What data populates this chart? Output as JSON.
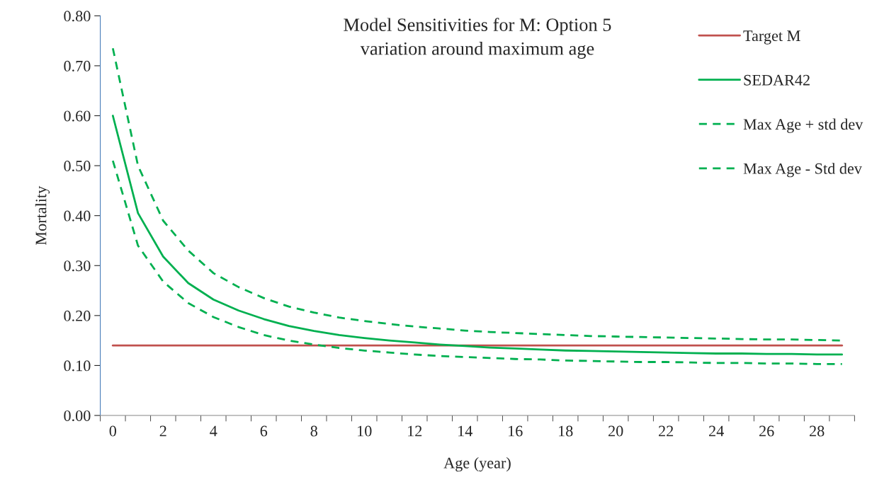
{
  "chart_data": {
    "type": "line",
    "title": "Model Sensitivities for M: Option 5",
    "subtitle": "variation around maximum age",
    "xlabel": "Age (year)",
    "ylabel": "Mortality",
    "categories": [
      "0",
      null,
      "2",
      null,
      "4",
      null,
      "6",
      null,
      "8",
      null,
      "10",
      null,
      "12",
      null,
      "14",
      null,
      "16",
      null,
      "18",
      null,
      "20",
      null,
      "22",
      null,
      "24",
      null,
      "26",
      null,
      "28",
      null
    ],
    "ylim": [
      0,
      0.8
    ],
    "yticks": [
      {
        "value": 0,
        "label": "0.00"
      },
      {
        "value": 0.1,
        "label": "0.10"
      },
      {
        "value": 0.2,
        "label": "0.20"
      },
      {
        "value": 0.3,
        "label": "0.30"
      },
      {
        "value": 0.4,
        "label": "0.40"
      },
      {
        "value": 0.5,
        "label": "0.50"
      },
      {
        "value": 0.6,
        "label": "0.60"
      },
      {
        "value": 0.7,
        "label": "0.70"
      },
      {
        "value": 0.8,
        "label": "0.80"
      }
    ],
    "grid": false,
    "legend": "top right",
    "marker": "none",
    "series": [
      {
        "name": "Target M",
        "color": "#c0504d",
        "line_style": "solid",
        "values": [
          0.14,
          0.14,
          0.14,
          0.14,
          0.14,
          0.14,
          0.14,
          0.14,
          0.14,
          0.14,
          0.14,
          0.14,
          0.14,
          0.14,
          0.14,
          0.14,
          0.14,
          0.14,
          0.14,
          0.14,
          0.14,
          0.14,
          0.14,
          0.14,
          0.14,
          0.14,
          0.14,
          0.14,
          0.14,
          0.14
        ]
      },
      {
        "name": "SEDAR42",
        "color": "#00b050",
        "line_style": "solid",
        "values": [
          0.6,
          0.405,
          0.318,
          0.265,
          0.232,
          0.21,
          0.193,
          0.179,
          0.169,
          0.161,
          0.155,
          0.15,
          0.146,
          0.142,
          0.139,
          0.136,
          0.134,
          0.132,
          0.13,
          0.129,
          0.128,
          0.127,
          0.126,
          0.125,
          0.124,
          0.124,
          0.123,
          0.123,
          0.122,
          0.122
        ]
      },
      {
        "name": "Max Age + std dev",
        "color": "#00b050",
        "line_style": "dashed",
        "values": [
          0.735,
          0.5,
          0.39,
          0.33,
          0.285,
          0.257,
          0.235,
          0.218,
          0.206,
          0.196,
          0.189,
          0.183,
          0.178,
          0.174,
          0.17,
          0.167,
          0.165,
          0.163,
          0.161,
          0.159,
          0.158,
          0.157,
          0.156,
          0.155,
          0.154,
          0.153,
          0.152,
          0.152,
          0.151,
          0.15
        ]
      },
      {
        "name": "Max Age - Std dev",
        "color": "#00b050",
        "line_style": "dashed",
        "values": [
          0.51,
          0.34,
          0.268,
          0.225,
          0.197,
          0.177,
          0.161,
          0.15,
          0.142,
          0.135,
          0.13,
          0.126,
          0.122,
          0.119,
          0.117,
          0.115,
          0.113,
          0.112,
          0.11,
          0.109,
          0.108,
          0.107,
          0.107,
          0.106,
          0.105,
          0.105,
          0.104,
          0.104,
          0.103,
          0.103
        ]
      }
    ]
  }
}
